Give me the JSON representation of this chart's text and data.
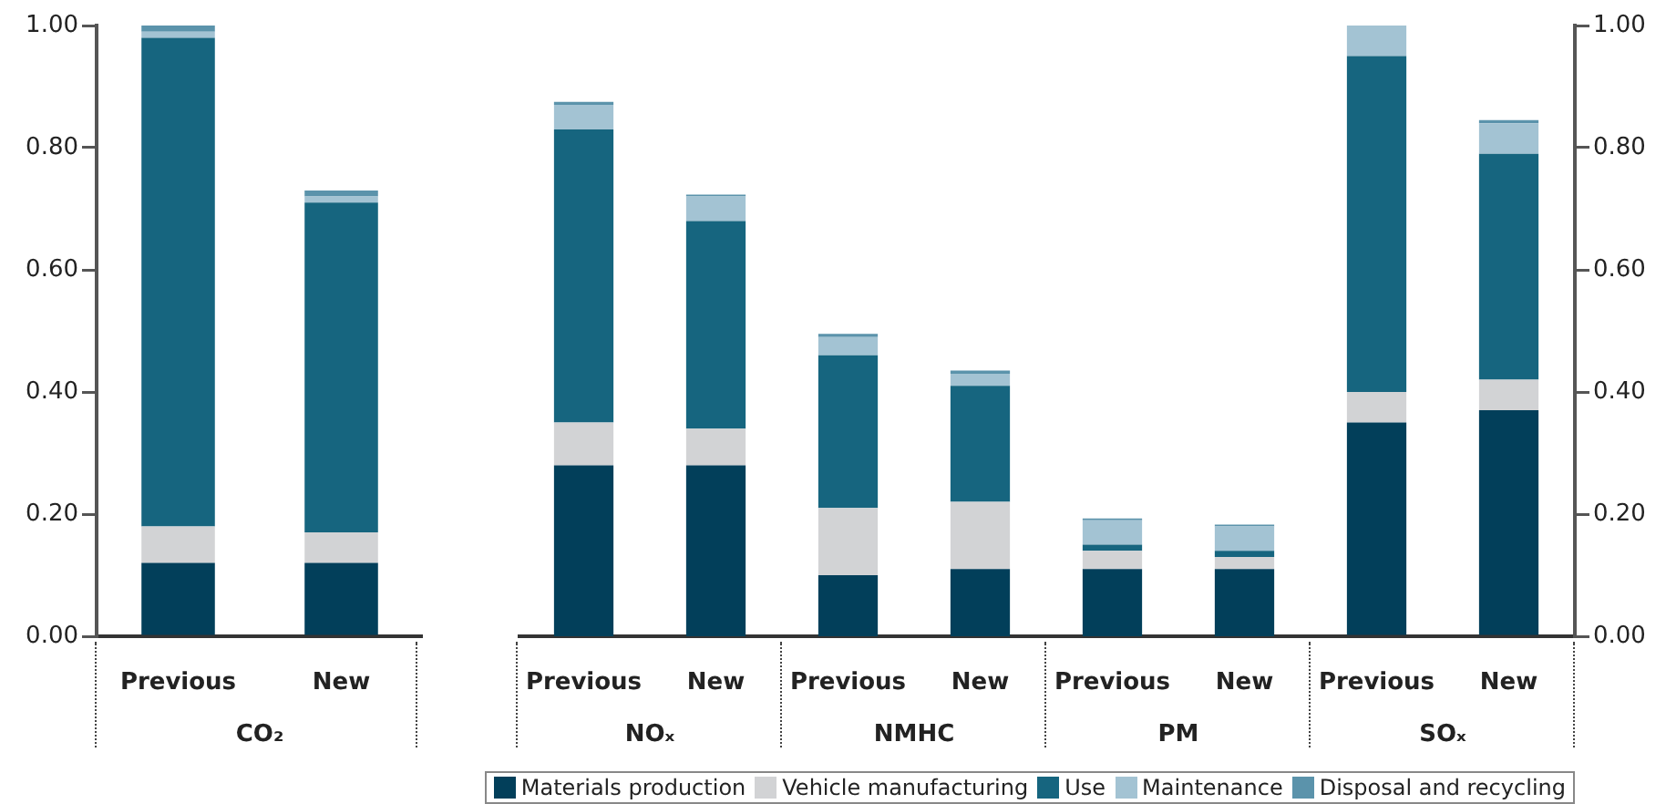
{
  "chart_data": [
    {
      "type": "bar",
      "stacked": true,
      "legend": "bottom",
      "xlabel": "CO₂",
      "categories": [
        "Previous",
        "New"
      ],
      "ylim": [
        0,
        1
      ],
      "yticks": [
        {
          "value": 0,
          "label": "0.00"
        },
        {
          "value": 0.2,
          "label": "0.20"
        },
        {
          "value": 0.4,
          "label": "0.40"
        },
        {
          "value": 0.6,
          "label": "0.60"
        },
        {
          "value": 0.8,
          "label": "0.80"
        },
        {
          "value": 1,
          "label": "1.00"
        }
      ],
      "series": [
        {
          "name": "Materials production",
          "color": "#023f5a",
          "values": [
            0.12,
            0.12
          ]
        },
        {
          "name": "Vehicle manufacturing",
          "color": "#d2d3d5",
          "values": [
            0.06,
            0.05
          ]
        },
        {
          "name": "Use",
          "color": "#16657f",
          "values": [
            0.8,
            0.54
          ]
        },
        {
          "name": "Maintenance",
          "color": "#a3c3d3",
          "values": [
            0.01,
            0.01
          ]
        },
        {
          "name": "Disposal and recycling",
          "color": "#5b93ab",
          "values": [
            0.01,
            0.01
          ]
        }
      ]
    },
    {
      "type": "bar",
      "stacked": true,
      "legend": "bottom",
      "xlabel": "NOₓ",
      "categories": [
        "Previous",
        "New"
      ],
      "ylim": [
        0,
        1
      ],
      "tick_labels": "x",
      "series": [
        {
          "name": "Materials production",
          "color": "#023f5a",
          "values": [
            0.28,
            0.28
          ]
        },
        {
          "name": "Vehicle manufacturing",
          "color": "#d2d3d5",
          "values": [
            0.07,
            0.06
          ]
        },
        {
          "name": "Use",
          "color": "#16657f",
          "values": [
            0.48,
            0.34
          ]
        },
        {
          "name": "Maintenance",
          "color": "#a3c3d3",
          "values": [
            0.04,
            0.04
          ]
        },
        {
          "name": "Disposal and recycling",
          "color": "#5b93ab",
          "values": [
            0.005,
            0.003
          ]
        }
      ]
    },
    {
      "type": "bar",
      "stacked": true,
      "legend": "bottom",
      "xlabel": "NMHC",
      "categories": [
        "Previous",
        "New"
      ],
      "ylim": [
        0,
        1
      ],
      "tick_labels": "x",
      "series": [
        {
          "name": "Materials production",
          "color": "#023f5a",
          "values": [
            0.1,
            0.11
          ]
        },
        {
          "name": "Vehicle manufacturing",
          "color": "#d2d3d5",
          "values": [
            0.11,
            0.11
          ]
        },
        {
          "name": "Use",
          "color": "#16657f",
          "values": [
            0.25,
            0.19
          ]
        },
        {
          "name": "Maintenance",
          "color": "#a3c3d3",
          "values": [
            0.03,
            0.02
          ]
        },
        {
          "name": "Disposal and recycling",
          "color": "#5b93ab",
          "values": [
            0.005,
            0.005
          ]
        }
      ]
    },
    {
      "type": "bar",
      "stacked": true,
      "legend": "bottom",
      "xlabel": "PM",
      "categories": [
        "Previous",
        "New"
      ],
      "ylim": [
        0,
        1
      ],
      "tick_labels": "x",
      "series": [
        {
          "name": "Materials production",
          "color": "#023f5a",
          "values": [
            0.11,
            0.11
          ]
        },
        {
          "name": "Vehicle manufacturing",
          "color": "#d2d3d5",
          "values": [
            0.03,
            0.02
          ]
        },
        {
          "name": "Use",
          "color": "#16657f",
          "values": [
            0.01,
            0.01
          ]
        },
        {
          "name": "Maintenance",
          "color": "#a3c3d3",
          "values": [
            0.04,
            0.04
          ]
        },
        {
          "name": "Disposal and recycling",
          "color": "#5b93ab",
          "values": [
            0.003,
            0.003
          ]
        }
      ]
    },
    {
      "type": "bar",
      "stacked": true,
      "xlabel": "SOₓ",
      "categories": [
        "Previous",
        "New"
      ],
      "ylim": [
        0,
        1
      ],
      "yticks": [
        {
          "value": 0,
          "label": "0.00"
        },
        {
          "value": 0.2,
          "label": "0.20"
        },
        {
          "value": 0.4,
          "label": "0.40"
        },
        {
          "value": 0.6,
          "label": "0.60"
        },
        {
          "value": 0.8,
          "label": "0.80"
        },
        {
          "value": 1,
          "label": "1.00"
        }
      ],
      "legend": "bottom",
      "series": [
        {
          "name": "Materials production",
          "color": "#023f5a",
          "values": [
            0.35,
            0.37
          ]
        },
        {
          "name": "Vehicle manufacturing",
          "color": "#d2d3d5",
          "values": [
            0.05,
            0.05
          ]
        },
        {
          "name": "Use",
          "color": "#16657f",
          "values": [
            0.55,
            0.37
          ]
        },
        {
          "name": "Maintenance",
          "color": "#a3c3d3",
          "values": [
            0.05,
            0.05
          ]
        },
        {
          "name": "Disposal and recycling",
          "color": "#5b93ab",
          "values": [
            0.003,
            0.005
          ]
        }
      ]
    }
  ]
}
